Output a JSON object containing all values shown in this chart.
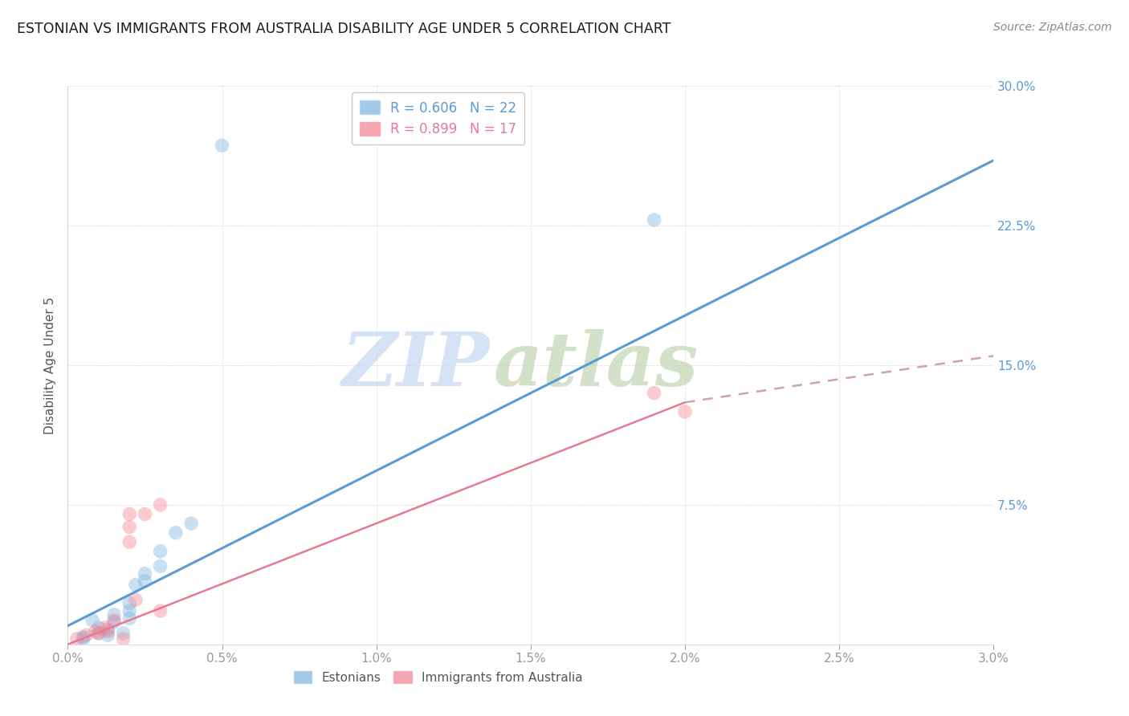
{
  "title": "ESTONIAN VS IMMIGRANTS FROM AUSTRALIA DISABILITY AGE UNDER 5 CORRELATION CHART",
  "source": "Source: ZipAtlas.com",
  "ylabel": "Disability Age Under 5",
  "xlim": [
    0.0,
    0.03
  ],
  "ylim": [
    0.0,
    0.3
  ],
  "xticks": [
    0.0,
    0.005,
    0.01,
    0.015,
    0.02,
    0.025,
    0.03
  ],
  "xticklabels": [
    "0.0%",
    "0.5%",
    "1.0%",
    "1.5%",
    "2.0%",
    "2.5%",
    "3.0%"
  ],
  "yticks": [
    0.075,
    0.15,
    0.225,
    0.3
  ],
  "yticklabels": [
    "7.5%",
    "15.0%",
    "22.5%",
    "30.0%"
  ],
  "blue_dots": [
    [
      0.0005,
      0.004
    ],
    [
      0.001,
      0.006
    ],
    [
      0.001,
      0.009
    ],
    [
      0.0008,
      0.013
    ],
    [
      0.0013,
      0.005
    ],
    [
      0.0013,
      0.008
    ],
    [
      0.0015,
      0.012
    ],
    [
      0.0015,
      0.016
    ],
    [
      0.002,
      0.014
    ],
    [
      0.002,
      0.018
    ],
    [
      0.002,
      0.022
    ],
    [
      0.0022,
      0.032
    ],
    [
      0.0025,
      0.034
    ],
    [
      0.0025,
      0.038
    ],
    [
      0.003,
      0.042
    ],
    [
      0.003,
      0.05
    ],
    [
      0.0035,
      0.06
    ],
    [
      0.004,
      0.065
    ],
    [
      0.005,
      0.268
    ],
    [
      0.019,
      0.228
    ],
    [
      0.0005,
      0.003
    ],
    [
      0.0018,
      0.006
    ]
  ],
  "pink_dots": [
    [
      0.0003,
      0.003
    ],
    [
      0.0006,
      0.005
    ],
    [
      0.0009,
      0.007
    ],
    [
      0.001,
      0.006
    ],
    [
      0.0012,
      0.009
    ],
    [
      0.0013,
      0.007
    ],
    [
      0.0015,
      0.013
    ],
    [
      0.002,
      0.055
    ],
    [
      0.002,
      0.063
    ],
    [
      0.002,
      0.07
    ],
    [
      0.0022,
      0.024
    ],
    [
      0.0025,
      0.07
    ],
    [
      0.003,
      0.075
    ],
    [
      0.0018,
      0.003
    ],
    [
      0.003,
      0.018
    ],
    [
      0.019,
      0.135
    ],
    [
      0.02,
      0.125
    ]
  ],
  "blue_line": {
    "x0": 0.0,
    "y0": 0.01,
    "x1": 0.03,
    "y1": 0.26
  },
  "pink_line_solid": {
    "x0": 0.0,
    "y0": 0.0,
    "x1": 0.02,
    "y1": 0.13
  },
  "pink_line_dashed": {
    "x0": 0.02,
    "y0": 0.13,
    "x1": 0.03,
    "y1": 0.155
  },
  "blue_line_color": "#5b9bd5",
  "pink_line_color": "#e87a90",
  "pink_dashed_color": "#d0a0b0",
  "dot_blue_color": "#7ab3e0",
  "dot_pink_color": "#f48090",
  "watermark_zip": "ZIP",
  "watermark_atlas": "atlas",
  "watermark_color_zip": "#c5d8f0",
  "watermark_color_atlas": "#c0d5b0",
  "background_color": "#ffffff",
  "grid_color": "#cccccc",
  "title_color": "#1a1a1a",
  "source_color": "#888888",
  "ytick_color": "#5b9bd5",
  "xtick_color": "#555555"
}
